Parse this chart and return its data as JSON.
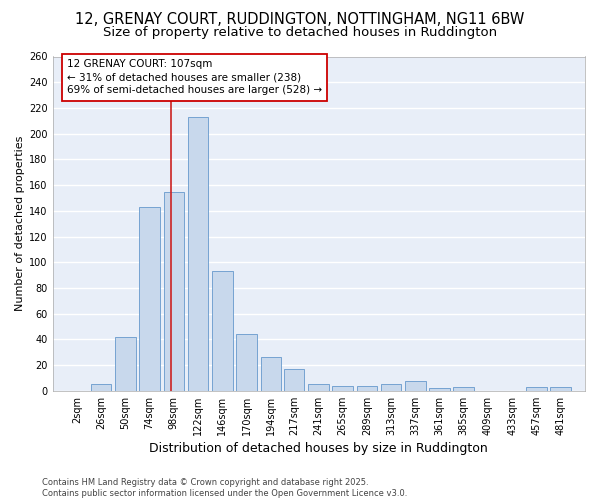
{
  "title1": "12, GRENAY COURT, RUDDINGTON, NOTTINGHAM, NG11 6BW",
  "title2": "Size of property relative to detached houses in Ruddington",
  "xlabel": "Distribution of detached houses by size in Ruddington",
  "ylabel": "Number of detached properties",
  "bar_color": "#c8d8ec",
  "bar_edge_color": "#6699cc",
  "background_color": "#e8eef8",
  "grid_color": "#ffffff",
  "categories": [
    "2sqm",
    "26sqm",
    "50sqm",
    "74sqm",
    "98sqm",
    "122sqm",
    "146sqm",
    "170sqm",
    "194sqm",
    "217sqm",
    "241sqm",
    "265sqm",
    "289sqm",
    "313sqm",
    "337sqm",
    "361sqm",
    "385sqm",
    "409sqm",
    "433sqm",
    "457sqm",
    "481sqm"
  ],
  "values": [
    0,
    5,
    42,
    143,
    155,
    213,
    93,
    44,
    26,
    17,
    5,
    4,
    4,
    5,
    8,
    2,
    3,
    0,
    0,
    3,
    3
  ],
  "bin_edges": [
    2,
    26,
    50,
    74,
    98,
    122,
    146,
    170,
    194,
    217,
    241,
    265,
    289,
    313,
    337,
    361,
    385,
    409,
    433,
    457,
    481,
    505
  ],
  "red_line_x": 107,
  "annotation_text": "12 GRENAY COURT: 107sqm\n← 31% of detached houses are smaller (238)\n69% of semi-detached houses are larger (528) →",
  "annotation_box_color": "#ffffff",
  "annotation_box_edge_color": "#cc0000",
  "ylim": [
    0,
    260
  ],
  "yticks": [
    0,
    20,
    40,
    60,
    80,
    100,
    120,
    140,
    160,
    180,
    200,
    220,
    240,
    260
  ],
  "footer_text": "Contains HM Land Registry data © Crown copyright and database right 2025.\nContains public sector information licensed under the Open Government Licence v3.0.",
  "title1_fontsize": 10.5,
  "title2_fontsize": 9.5,
  "ylabel_fontsize": 8,
  "xlabel_fontsize": 9,
  "tick_fontsize": 7,
  "annotation_fontsize": 7.5,
  "footer_fontsize": 6
}
